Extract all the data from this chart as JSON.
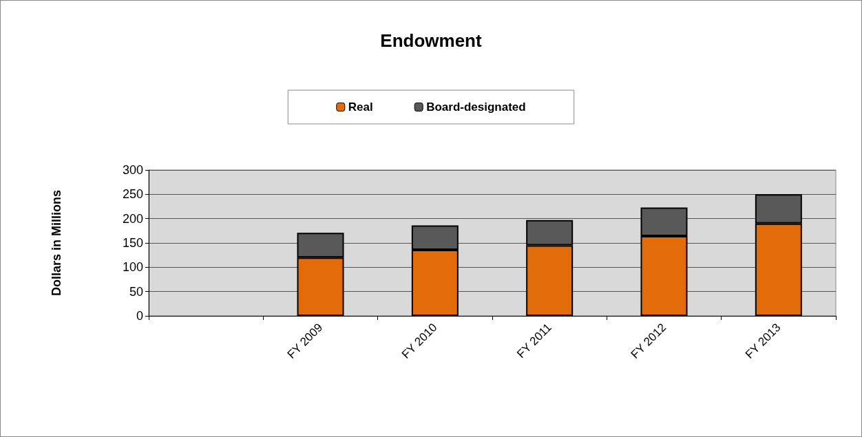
{
  "chart_data": {
    "type": "bar",
    "title": "Endowment",
    "ylabel": "Dollars in Millions",
    "categories": [
      null,
      "FY 2009",
      "FY 2010",
      "FY 2011",
      "FY 2012",
      "FY 2013"
    ],
    "series": [
      {
        "name": "Real",
        "color": "#e36c0a",
        "values": [
          null,
          120,
          136,
          145,
          164,
          190
        ]
      },
      {
        "name": "Board-designated",
        "color": "#595959",
        "values": [
          null,
          51,
          50,
          52,
          59,
          60
        ]
      }
    ],
    "stacked": true,
    "ylim": [
      0,
      300
    ],
    "yticks": [
      0,
      50,
      100,
      150,
      200,
      250,
      300
    ],
    "grid": "y",
    "legend": "top"
  }
}
